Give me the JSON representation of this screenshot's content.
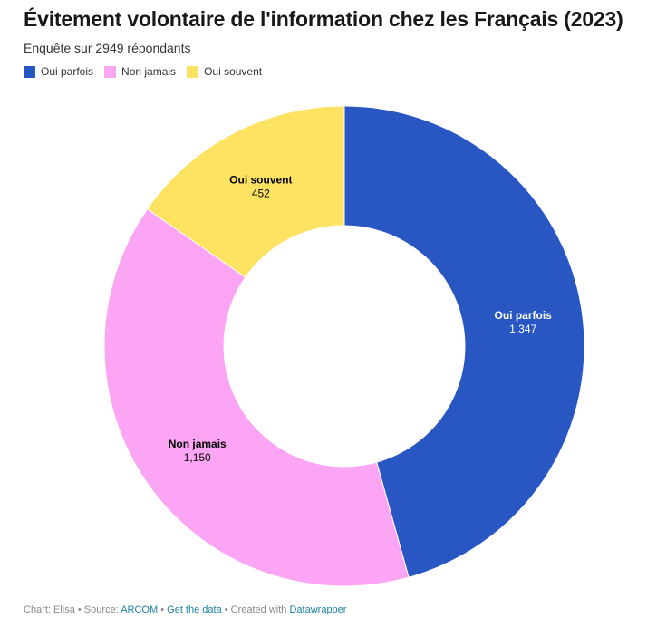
{
  "title": "Évitement volontaire de l'information chez les Français (2023)",
  "subtitle": "Enquête sur 2949 répondants",
  "legend": [
    {
      "label": "Oui parfois"
    },
    {
      "label": "Non jamais"
    },
    {
      "label": "Oui souvent"
    }
  ],
  "chart_data": {
    "type": "pie",
    "donut": true,
    "title": "Évitement volontaire de l'information chez les Français (2023)",
    "subtitle": "Enquête sur 2949 répondants",
    "legend_position": "top-left",
    "slices": [
      {
        "label": "Oui parfois",
        "value": 1347,
        "display": "1,347",
        "color": "#2856c3",
        "text_color": "#ffffff"
      },
      {
        "label": "Non jamais",
        "value": 1150,
        "display": "1,150",
        "color": "#fca5f5",
        "text_color": "#000000"
      },
      {
        "label": "Oui souvent",
        "value": 452,
        "display": "452",
        "color": "#fee362",
        "text_color": "#000000"
      }
    ]
  },
  "footer": {
    "chart_by": "Chart: Elisa",
    "source_label": "• Source:",
    "source": "ARCOM",
    "get_data": "Get the data",
    "created_with": "• Created with",
    "tool": "Datawrapper",
    "sep": "•"
  }
}
